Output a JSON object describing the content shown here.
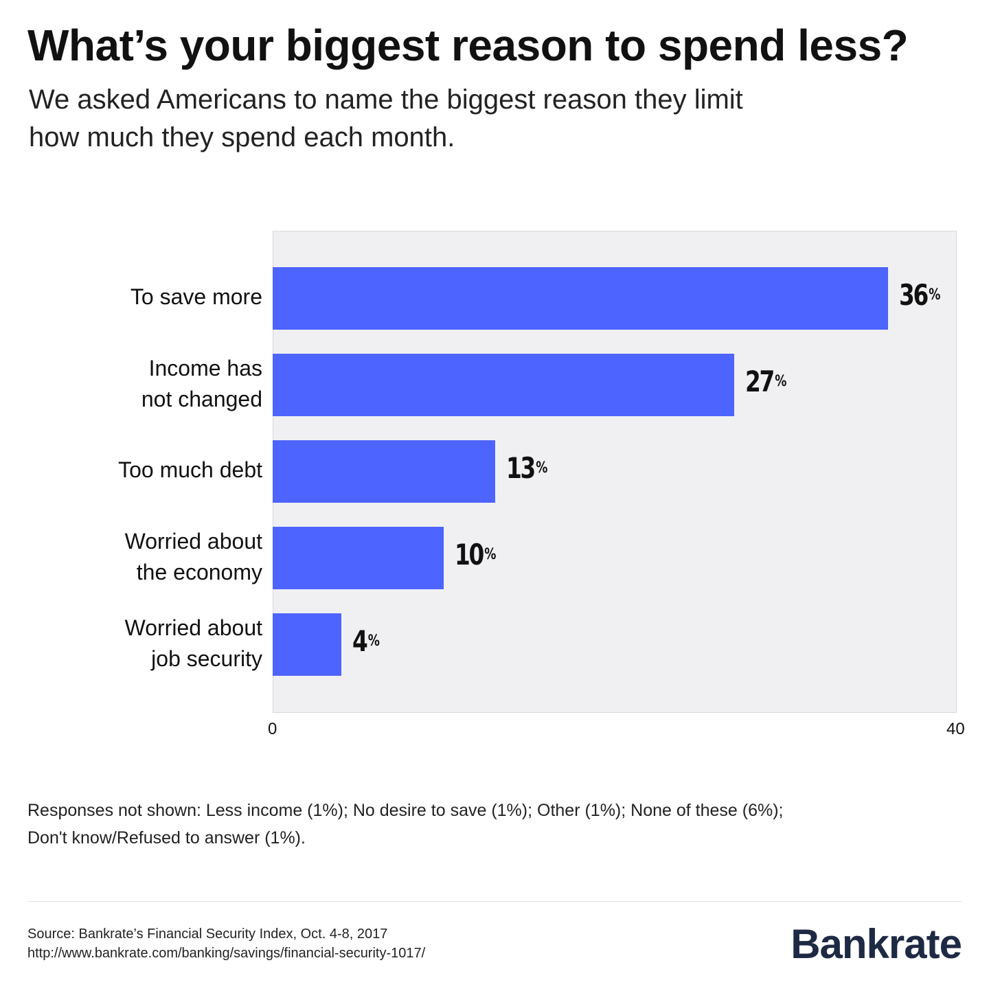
{
  "header": {
    "title": "What’s your biggest reason to spend less?",
    "subtitle_line1": "We asked Americans to name the biggest reason they limit",
    "subtitle_line2": "how much they spend each month."
  },
  "chart_data": {
    "type": "bar",
    "orientation": "horizontal",
    "categories": [
      [
        "To save more"
      ],
      [
        "Income has",
        "not changed"
      ],
      [
        "Too much debt"
      ],
      [
        "Worried about",
        "the economy"
      ],
      [
        "Worried about",
        "job security"
      ]
    ],
    "values": [
      36,
      27,
      13,
      10,
      4
    ],
    "value_labels": [
      "36",
      "27",
      "13",
      "10",
      "4"
    ],
    "value_unit": "%",
    "xlim": [
      0,
      40
    ],
    "x_ticks": [
      "0",
      "40"
    ],
    "bar_color": "#4d64ff",
    "plot_background": "#f0f0f2",
    "grid": false,
    "legend": "none"
  },
  "footnote": {
    "line1": "Responses not shown: Less income (1%); No desire to save (1%); Other (1%); None of these (6%);",
    "line2": "Don't know/Refused to answer (1%)."
  },
  "source": {
    "line1": "Source: Bankrate’s Financial Security Index, Oct. 4-8, 2017",
    "line2": "http://www.bankrate.com/banking/savings/financial-security-1017/"
  },
  "brand": {
    "name": "Bankrate",
    "color": "#1e2a44"
  }
}
